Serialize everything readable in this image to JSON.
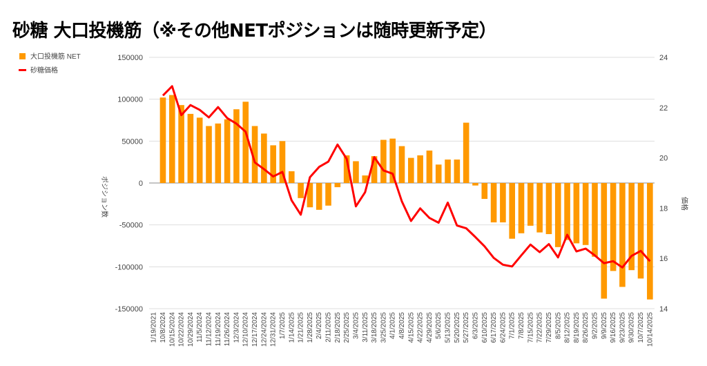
{
  "chart_data": {
    "type": "bar+line",
    "title": "砂糖 大口投機筋（※その他NETポジションは随時更新予定）",
    "ylabel_left": "ポジション数",
    "ylabel_right": "価格",
    "ylim_left": [
      -150000,
      150000
    ],
    "yticks_left": [
      "150000",
      "100000",
      "50000",
      "0",
      "-50000",
      "-100000",
      "-150000"
    ],
    "ylim_right": [
      14,
      24
    ],
    "yticks_right": [
      "24",
      "22",
      "20",
      "18",
      "16",
      "14"
    ],
    "legend_position": "top-left",
    "colors": {
      "net": "#ff9900",
      "price": "#ff0000",
      "grid": "#dddddd"
    },
    "categories": [
      "1/19/2021",
      "10/8/2024",
      "10/15/2024",
      "10/22/2024",
      "10/29/2024",
      "11/5/2024",
      "11/12/2024",
      "11/19/2024",
      "11/26/2024",
      "12/3/2024",
      "12/10/2024",
      "12/17/2024",
      "12/24/2024",
      "12/31/2024",
      "1/7/2025",
      "1/14/2025",
      "1/21/2025",
      "1/28/2025",
      "2/4/2025",
      "2/11/2025",
      "2/18/2025",
      "2/25/2025",
      "3/4/2025",
      "3/11/2025",
      "3/18/2025",
      "3/25/2025",
      "4/1/2025",
      "4/8/2025",
      "4/15/2025",
      "4/22/2025",
      "4/29/2025",
      "5/6/2025",
      "5/13/2025",
      "5/20/2025",
      "5/27/2025",
      "6/3/2025",
      "6/10/2025",
      "6/17/2025",
      "6/24/2025",
      "7/1/2025",
      "7/8/2025",
      "7/15/2025",
      "7/22/2025",
      "7/29/2025",
      "8/5/2025",
      "8/12/2025",
      "8/19/2025",
      "8/26/2025",
      "9/2/2025",
      "9/9/2025",
      "9/16/2025",
      "9/23/2025",
      "9/30/2025",
      "10/7/2025",
      "10/14/2025"
    ],
    "series": [
      {
        "name": "大口投機筋  NET",
        "type": "bar",
        "axis": "left",
        "values": [
          null,
          102000,
          105000,
          93000,
          82500,
          78000,
          68000,
          71000,
          76000,
          88000,
          97000,
          68000,
          59000,
          45000,
          50000,
          14000,
          -18000,
          -29000,
          -32000,
          -27000,
          -5000,
          33000,
          26000,
          9000,
          32000,
          51500,
          53000,
          44000,
          30000,
          33000,
          38700,
          22000,
          28000,
          28000,
          72000,
          -3000,
          -19000,
          -47000,
          -47000,
          -66500,
          -60000,
          -51000,
          -59000,
          -61000,
          -76500,
          -68000,
          -72000,
          -74000,
          -88000,
          -138000,
          -105000,
          -124000,
          -104000,
          -114000,
          -139000
        ]
      },
      {
        "name": "砂糖価格",
        "type": "line",
        "axis": "right",
        "values": [
          null,
          22.48,
          22.85,
          21.7,
          22.1,
          21.91,
          21.61,
          22.02,
          21.58,
          21.36,
          21.04,
          19.82,
          19.55,
          19.26,
          19.44,
          18.31,
          17.74,
          19.23,
          19.64,
          19.85,
          20.53,
          19.96,
          18.07,
          18.63,
          20.03,
          19.5,
          19.37,
          18.27,
          17.49,
          17.99,
          17.61,
          17.42,
          18.22,
          17.31,
          17.2,
          16.85,
          16.48,
          16.02,
          15.75,
          15.68,
          16.12,
          16.55,
          16.25,
          16.57,
          16.04,
          16.94,
          16.28,
          16.39,
          16.12,
          15.81,
          15.89,
          15.64,
          16.1,
          16.3,
          15.89
        ]
      }
    ]
  }
}
